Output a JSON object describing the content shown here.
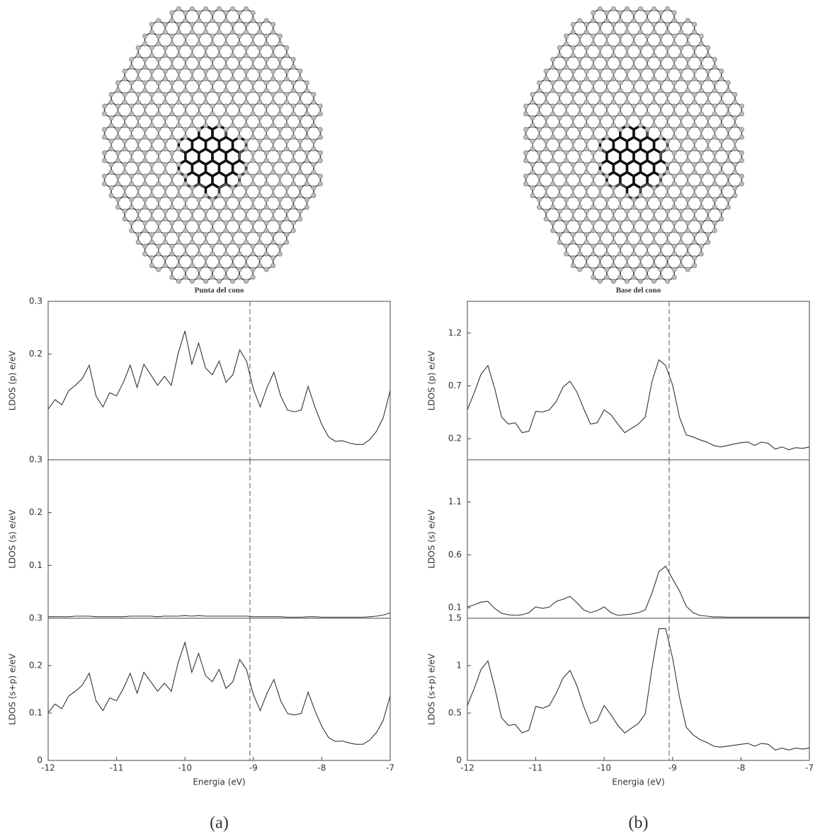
{
  "chart_data": [
    {
      "type": "line",
      "title": "Punta del cono",
      "ylabel": "LDOS (p) e/eV",
      "xlim": [
        -12,
        -7
      ],
      "ylim": [
        0,
        0.3
      ],
      "yticks": [
        0.2,
        0.3
      ],
      "vline": -9.05,
      "x": [
        -12,
        -11.9,
        -11.8,
        -11.7,
        -11.6,
        -11.5,
        -11.4,
        -11.3,
        -11.2,
        -11.1,
        -11,
        -10.9,
        -10.8,
        -10.7,
        -10.6,
        -10.5,
        -10.4,
        -10.3,
        -10.2,
        -10.1,
        -10,
        -9.9,
        -9.8,
        -9.7,
        -9.6,
        -9.5,
        -9.4,
        -9.3,
        -9.2,
        -9.1,
        -9,
        -8.9,
        -8.8,
        -8.7,
        -8.6,
        -8.5,
        -8.4,
        -8.3,
        -8.2,
        -8.1,
        -8,
        -7.9,
        -7.8,
        -7.7,
        -7.6,
        -7.5,
        -7.4,
        -7.3,
        -7.2,
        -7.1,
        -7
      ],
      "series": [
        {
          "color": "#333333",
          "values": [
            0.096,
            0.114,
            0.104,
            0.131,
            0.141,
            0.154,
            0.179,
            0.121,
            0.1,
            0.127,
            0.121,
            0.147,
            0.179,
            0.137,
            0.181,
            0.161,
            0.141,
            0.158,
            0.141,
            0.201,
            0.244,
            0.181,
            0.221,
            0.174,
            0.161,
            0.187,
            0.147,
            0.161,
            0.208,
            0.187,
            0.134,
            0.1,
            0.137,
            0.166,
            0.121,
            0.094,
            0.091,
            0.094,
            0.139,
            0.1,
            0.067,
            0.043,
            0.035,
            0.036,
            0.032,
            0.029,
            0.029,
            0.038,
            0.054,
            0.08,
            0.131
          ]
        }
      ]
    },
    {
      "type": "line",
      "ylabel": "LDOS (s) e/eV",
      "xlim": [
        -12,
        -7
      ],
      "ylim": [
        0,
        0.3
      ],
      "yticks": [
        0.1,
        0.2,
        0.3
      ],
      "vline": -9.05,
      "x": [
        -12,
        -11.9,
        -11.8,
        -11.7,
        -11.6,
        -11.5,
        -11.4,
        -11.3,
        -11.2,
        -11.1,
        -11,
        -10.9,
        -10.8,
        -10.7,
        -10.6,
        -10.5,
        -10.4,
        -10.3,
        -10.2,
        -10.1,
        -10,
        -9.9,
        -9.8,
        -9.7,
        -9.6,
        -9.5,
        -9.4,
        -9.3,
        -9.2,
        -9.1,
        -9,
        -8.9,
        -8.8,
        -8.7,
        -8.6,
        -8.5,
        -8.4,
        -8.3,
        -8.2,
        -8.1,
        -8,
        -7.9,
        -7.8,
        -7.7,
        -7.6,
        -7.5,
        -7.4,
        -7.3,
        -7.2,
        -7.1,
        -7
      ],
      "series": [
        {
          "color": "#333333",
          "values": [
            0.003,
            0.003,
            0.003,
            0.003,
            0.004,
            0.004,
            0.004,
            0.003,
            0.003,
            0.003,
            0.003,
            0.003,
            0.004,
            0.004,
            0.004,
            0.004,
            0.003,
            0.004,
            0.004,
            0.004,
            0.005,
            0.004,
            0.005,
            0.004,
            0.004,
            0.004,
            0.004,
            0.004,
            0.004,
            0.004,
            0.003,
            0.003,
            0.003,
            0.003,
            0.003,
            0.002,
            0.002,
            0.002,
            0.003,
            0.003,
            0.002,
            0.002,
            0.002,
            0.002,
            0.002,
            0.002,
            0.002,
            0.003,
            0.004,
            0.006,
            0.01
          ]
        }
      ]
    },
    {
      "type": "line",
      "ylabel": "LDOS (s+p) e/eV",
      "xlabel": "Energia (eV)",
      "caption": "(a)",
      "xlim": [
        -12,
        -7
      ],
      "xticks": [
        -12,
        -11,
        -10,
        -9,
        -8,
        -7
      ],
      "ylim": [
        0,
        0.3
      ],
      "yticks": [
        0,
        0.1,
        0.2,
        0.3
      ],
      "vline": -9.05,
      "x": [
        -12,
        -11.9,
        -11.8,
        -11.7,
        -11.6,
        -11.5,
        -11.4,
        -11.3,
        -11.2,
        -11.1,
        -11,
        -10.9,
        -10.8,
        -10.7,
        -10.6,
        -10.5,
        -10.4,
        -10.3,
        -10.2,
        -10.1,
        -10,
        -9.9,
        -9.8,
        -9.7,
        -9.6,
        -9.5,
        -9.4,
        -9.3,
        -9.2,
        -9.1,
        -9,
        -8.9,
        -8.8,
        -8.7,
        -8.6,
        -8.5,
        -8.4,
        -8.3,
        -8.2,
        -8.1,
        -8,
        -7.9,
        -7.8,
        -7.7,
        -7.6,
        -7.5,
        -7.4,
        -7.3,
        -7.2,
        -7.1,
        -7
      ],
      "series": [
        {
          "color": "#333333",
          "values": [
            0.101,
            0.119,
            0.109,
            0.136,
            0.146,
            0.159,
            0.184,
            0.126,
            0.105,
            0.132,
            0.126,
            0.152,
            0.184,
            0.142,
            0.186,
            0.166,
            0.146,
            0.163,
            0.146,
            0.206,
            0.249,
            0.186,
            0.226,
            0.179,
            0.166,
            0.192,
            0.152,
            0.166,
            0.213,
            0.192,
            0.139,
            0.105,
            0.142,
            0.171,
            0.126,
            0.099,
            0.096,
            0.099,
            0.144,
            0.105,
            0.072,
            0.048,
            0.04,
            0.041,
            0.037,
            0.034,
            0.034,
            0.043,
            0.059,
            0.085,
            0.136
          ]
        }
      ]
    },
    {
      "type": "line",
      "title": "Base del cono",
      "ylabel": "LDOS (p) e/eV",
      "xlim": [
        -12,
        -7
      ],
      "ylim": [
        0,
        1.5
      ],
      "yticks": [
        0.2,
        0.7,
        1.2
      ],
      "vline": -9.05,
      "x": [
        -12,
        -11.9,
        -11.8,
        -11.7,
        -11.6,
        -11.5,
        -11.4,
        -11.3,
        -11.2,
        -11.1,
        -11,
        -10.9,
        -10.8,
        -10.7,
        -10.6,
        -10.5,
        -10.4,
        -10.3,
        -10.2,
        -10.1,
        -10,
        -9.9,
        -9.8,
        -9.7,
        -9.6,
        -9.5,
        -9.4,
        -9.3,
        -9.2,
        -9.1,
        -9,
        -8.9,
        -8.8,
        -8.7,
        -8.6,
        -8.5,
        -8.4,
        -8.3,
        -8.2,
        -8.1,
        -8,
        -7.9,
        -7.8,
        -7.7,
        -7.6,
        -7.5,
        -7.4,
        -7.3,
        -7.2,
        -7.1,
        -7
      ],
      "series": [
        {
          "color": "#333333",
          "values": [
            0.473,
            0.635,
            0.811,
            0.892,
            0.676,
            0.405,
            0.338,
            0.351,
            0.257,
            0.27,
            0.459,
            0.453,
            0.473,
            0.554,
            0.689,
            0.743,
            0.642,
            0.486,
            0.338,
            0.351,
            0.473,
            0.426,
            0.338,
            0.257,
            0.297,
            0.338,
            0.405,
            0.743,
            0.946,
            0.892,
            0.709,
            0.405,
            0.236,
            0.216,
            0.189,
            0.169,
            0.135,
            0.122,
            0.135,
            0.149,
            0.162,
            0.169,
            0.135,
            0.169,
            0.155,
            0.101,
            0.122,
            0.095,
            0.115,
            0.108,
            0.122
          ]
        }
      ]
    },
    {
      "type": "line",
      "ylabel": "LDOS (s) e/eV",
      "xlim": [
        -12,
        -7
      ],
      "ylim": [
        0,
        1.5
      ],
      "yticks": [
        0.1,
        0.6,
        1.1
      ],
      "vline": -9.05,
      "x": [
        -12,
        -11.9,
        -11.8,
        -11.7,
        -11.6,
        -11.5,
        -11.4,
        -11.3,
        -11.2,
        -11.1,
        -11,
        -10.9,
        -10.8,
        -10.7,
        -10.6,
        -10.5,
        -10.4,
        -10.3,
        -10.2,
        -10.1,
        -10,
        -9.9,
        -9.8,
        -9.7,
        -9.6,
        -9.5,
        -9.4,
        -9.3,
        -9.2,
        -9.1,
        -9,
        -8.9,
        -8.8,
        -8.7,
        -8.6,
        -8.5,
        -8.4,
        -8.3,
        -8.2,
        -8.1,
        -8,
        -7.9,
        -7.8,
        -7.7,
        -7.6,
        -7.5,
        -7.4,
        -7.3,
        -7.2,
        -7.1,
        -7
      ],
      "series": [
        {
          "color": "#333333",
          "values": [
            0.107,
            0.127,
            0.153,
            0.16,
            0.093,
            0.047,
            0.033,
            0.027,
            0.033,
            0.053,
            0.107,
            0.093,
            0.107,
            0.16,
            0.18,
            0.207,
            0.147,
            0.08,
            0.053,
            0.073,
            0.107,
            0.053,
            0.027,
            0.033,
            0.04,
            0.053,
            0.08,
            0.24,
            0.44,
            0.493,
            0.373,
            0.26,
            0.113,
            0.053,
            0.027,
            0.02,
            0.013,
            0.013,
            0.01,
            0.01,
            0.01,
            0.01,
            0.01,
            0.01,
            0.01,
            0.01,
            0.01,
            0.01,
            0.01,
            0.01,
            0.01
          ]
        }
      ]
    },
    {
      "type": "line",
      "ylabel": "LDOS (s+p) e/eV",
      "xlabel": "Energia (eV)",
      "caption": "(b)",
      "xlim": [
        -12,
        -7
      ],
      "xticks": [
        -12,
        -11,
        -10,
        -9,
        -8,
        -7
      ],
      "ylim": [
        0,
        1.5
      ],
      "yticks": [
        0,
        0.5,
        1,
        1.5
      ],
      "vline": -9.05,
      "x": [
        -12,
        -11.9,
        -11.8,
        -11.7,
        -11.6,
        -11.5,
        -11.4,
        -11.3,
        -11.2,
        -11.1,
        -11,
        -10.9,
        -10.8,
        -10.7,
        -10.6,
        -10.5,
        -10.4,
        -10.3,
        -10.2,
        -10.1,
        -10,
        -9.9,
        -9.8,
        -9.7,
        -9.6,
        -9.5,
        -9.4,
        -9.3,
        -9.2,
        -9.1,
        -9,
        -8.9,
        -8.8,
        -8.7,
        -8.6,
        -8.5,
        -8.4,
        -8.3,
        -8.2,
        -8.1,
        -8,
        -7.9,
        -7.8,
        -7.7,
        -7.6,
        -7.5,
        -7.4,
        -7.3,
        -7.2,
        -7.1,
        -7
      ],
      "series": [
        {
          "color": "#333333",
          "values": [
            0.58,
            0.76,
            0.96,
            1.05,
            0.77,
            0.45,
            0.37,
            0.38,
            0.29,
            0.32,
            0.57,
            0.55,
            0.58,
            0.71,
            0.87,
            0.95,
            0.79,
            0.57,
            0.39,
            0.42,
            0.58,
            0.48,
            0.37,
            0.29,
            0.34,
            0.39,
            0.49,
            0.98,
            1.39,
            1.39,
            1.08,
            0.67,
            0.35,
            0.27,
            0.22,
            0.19,
            0.15,
            0.14,
            0.15,
            0.16,
            0.17,
            0.18,
            0.15,
            0.18,
            0.17,
            0.11,
            0.13,
            0.11,
            0.13,
            0.12,
            0.13
          ]
        }
      ]
    }
  ]
}
